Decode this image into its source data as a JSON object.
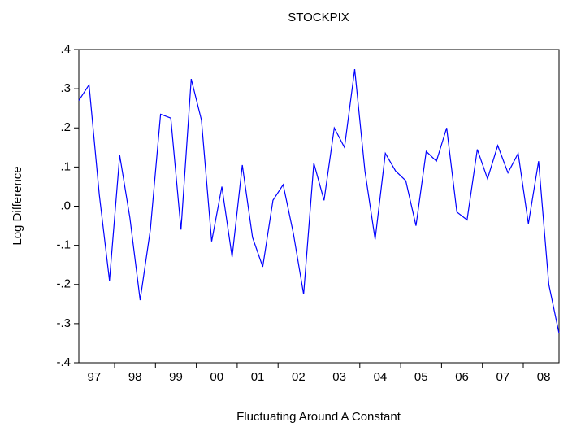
{
  "chart_data": {
    "type": "line",
    "title": "STOCKPIX",
    "ylabel": "Log Difference",
    "xlabel": "Fluctuating Around A Constant",
    "categories": [
      null,
      "97",
      null,
      null,
      null,
      "98",
      null,
      null,
      null,
      "99",
      null,
      null,
      null,
      "00",
      null,
      null,
      null,
      "01",
      null,
      null,
      null,
      "02",
      null,
      null,
      null,
      "03",
      null,
      null,
      null,
      "04",
      null,
      null,
      null,
      "05",
      null,
      null,
      null,
      "06",
      null,
      null,
      null,
      "07",
      null,
      null,
      null,
      "08",
      null,
      null
    ],
    "series": [
      {
        "name": "STOCKPIX",
        "color": "#0000ff",
        "values": [
          0.27,
          0.31,
          0.03,
          -0.19,
          0.13,
          -0.03,
          -0.24,
          -0.06,
          0.235,
          0.225,
          -0.06,
          0.325,
          0.22,
          -0.09,
          0.05,
          -0.13,
          0.105,
          -0.08,
          -0.155,
          0.015,
          0.055,
          -0.07,
          -0.225,
          0.11,
          0.015,
          0.2,
          0.15,
          0.35,
          0.09,
          -0.085,
          0.135,
          0.09,
          0.065,
          -0.05,
          0.14,
          0.115,
          0.2,
          -0.015,
          -0.035,
          0.145,
          0.07,
          0.155,
          0.085,
          0.135,
          -0.045,
          0.115,
          -0.2,
          -0.325
        ]
      }
    ],
    "ylim": [
      -0.4,
      0.4
    ],
    "yticks": [
      {
        "value": -0.4,
        "label": "-.4"
      },
      {
        "value": -0.3,
        "label": "-.3"
      },
      {
        "value": -0.2,
        "label": "-.2"
      },
      {
        "value": -0.1,
        "label": "-.1"
      },
      {
        "value": 0,
        "label": ".0"
      },
      {
        "value": 0.1,
        "label": ".1"
      },
      {
        "value": 0.2,
        "label": ".2"
      },
      {
        "value": 0.3,
        "label": ".3"
      },
      {
        "value": 0.4,
        "label": ".4"
      }
    ]
  }
}
